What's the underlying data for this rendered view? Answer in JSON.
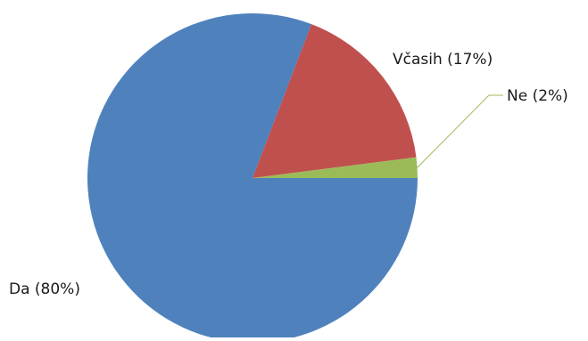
{
  "chart_data": {
    "type": "pie",
    "categories": [
      "Da",
      "Včasih",
      "Ne"
    ],
    "values": [
      80,
      17,
      2
    ],
    "labels": [
      "Da (80%)",
      "Včasih (17%)",
      "Ne (2%)"
    ],
    "colors": [
      "#4f81bd",
      "#c0504d",
      "#9bbb59"
    ],
    "leader_color": "#9bbb59",
    "title": "",
    "legend": "none"
  }
}
